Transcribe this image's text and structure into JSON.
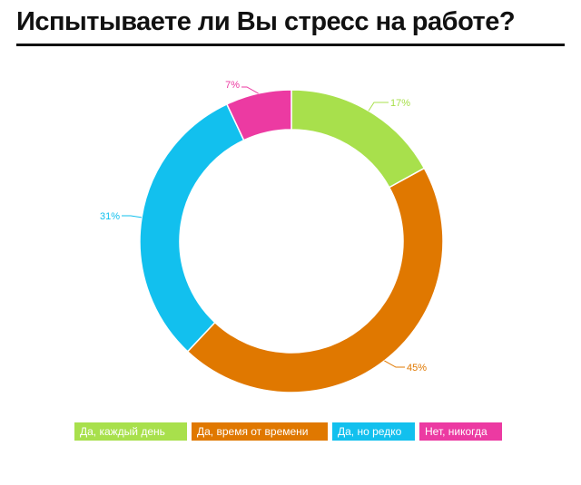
{
  "title": "Испытываете ли Вы стресс на работе?",
  "chart_data": {
    "type": "pie",
    "donut": true,
    "title": "Испытываете ли Вы стресс на работе?",
    "series": [
      {
        "name": "Да, каждый день",
        "value": 17,
        "label": "17%",
        "color": "#a8e04c"
      },
      {
        "name": "Да, время от времени",
        "value": 45,
        "label": "45%",
        "color": "#e07800"
      },
      {
        "name": "Да, но редко",
        "value": 31,
        "label": "31%",
        "color": "#12c0ee"
      },
      {
        "name": "Нет, никогда",
        "value": 7,
        "label": "7%",
        "color": "#ec3aa2"
      }
    ],
    "legend_position": "bottom"
  }
}
